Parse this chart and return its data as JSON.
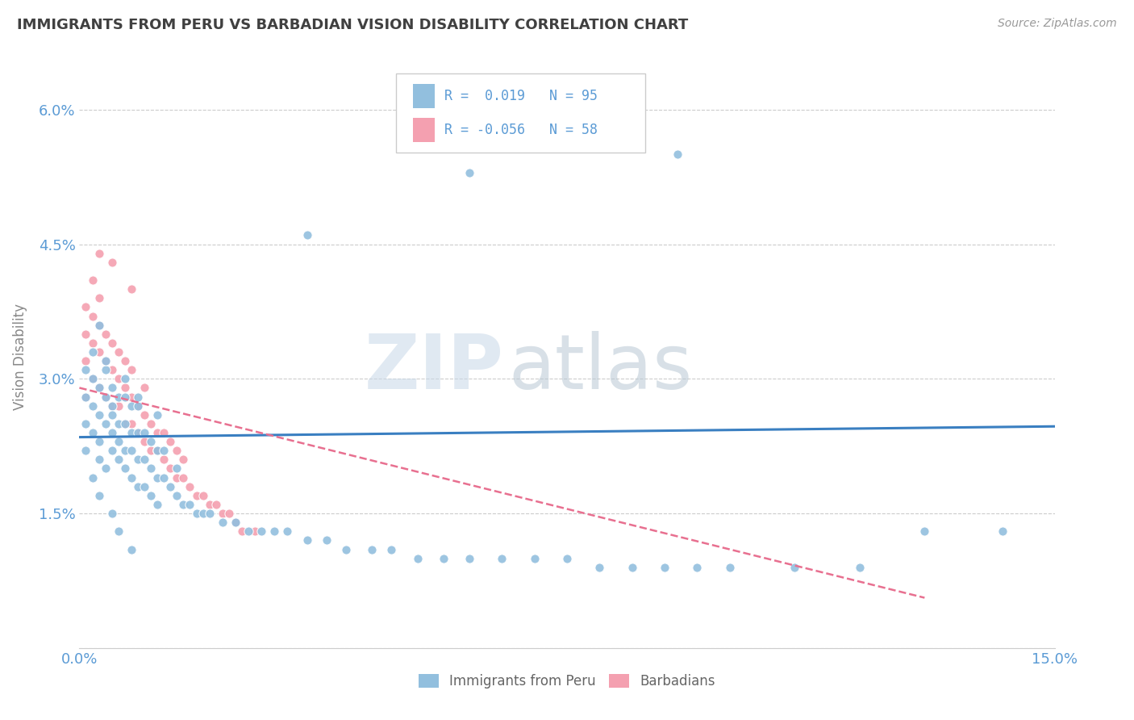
{
  "title": "IMMIGRANTS FROM PERU VS BARBADIAN VISION DISABILITY CORRELATION CHART",
  "source": "Source: ZipAtlas.com",
  "ylabel": "Vision Disability",
  "xlim": [
    0.0,
    0.15
  ],
  "ylim": [
    0.0,
    0.065
  ],
  "xticks": [
    0.0,
    0.03,
    0.06,
    0.09,
    0.12,
    0.15
  ],
  "yticks": [
    0.0,
    0.015,
    0.03,
    0.045,
    0.06
  ],
  "color_blue": "#92BFDE",
  "color_pink": "#F4A0B0",
  "color_trendline_blue": "#3A7FC1",
  "color_trendline_pink": "#E87090",
  "background_color": "#ffffff",
  "grid_color": "#cccccc",
  "axis_label_color": "#5B9BD5",
  "title_color": "#404040",
  "peru_x": [
    0.001,
    0.001,
    0.001,
    0.001,
    0.002,
    0.002,
    0.002,
    0.002,
    0.003,
    0.003,
    0.003,
    0.003,
    0.004,
    0.004,
    0.004,
    0.004,
    0.005,
    0.005,
    0.005,
    0.005,
    0.005,
    0.006,
    0.006,
    0.006,
    0.006,
    0.007,
    0.007,
    0.007,
    0.007,
    0.008,
    0.008,
    0.008,
    0.008,
    0.009,
    0.009,
    0.009,
    0.009,
    0.01,
    0.01,
    0.01,
    0.011,
    0.011,
    0.011,
    0.012,
    0.012,
    0.012,
    0.013,
    0.013,
    0.014,
    0.015,
    0.015,
    0.016,
    0.017,
    0.018,
    0.019,
    0.02,
    0.022,
    0.024,
    0.026,
    0.028,
    0.03,
    0.032,
    0.035,
    0.038,
    0.041,
    0.045,
    0.048,
    0.052,
    0.056,
    0.06,
    0.065,
    0.07,
    0.075,
    0.08,
    0.085,
    0.09,
    0.095,
    0.1,
    0.11,
    0.12,
    0.035,
    0.06,
    0.092,
    0.13,
    0.142,
    0.003,
    0.004,
    0.007,
    0.009,
    0.012,
    0.002,
    0.003,
    0.005,
    0.006,
    0.008
  ],
  "peru_y": [
    0.025,
    0.028,
    0.022,
    0.031,
    0.027,
    0.024,
    0.03,
    0.033,
    0.021,
    0.026,
    0.029,
    0.023,
    0.025,
    0.028,
    0.031,
    0.02,
    0.024,
    0.027,
    0.022,
    0.026,
    0.029,
    0.023,
    0.025,
    0.028,
    0.021,
    0.022,
    0.025,
    0.028,
    0.02,
    0.022,
    0.024,
    0.027,
    0.019,
    0.021,
    0.024,
    0.027,
    0.018,
    0.021,
    0.024,
    0.018,
    0.02,
    0.023,
    0.017,
    0.019,
    0.022,
    0.016,
    0.019,
    0.022,
    0.018,
    0.017,
    0.02,
    0.016,
    0.016,
    0.015,
    0.015,
    0.015,
    0.014,
    0.014,
    0.013,
    0.013,
    0.013,
    0.013,
    0.012,
    0.012,
    0.011,
    0.011,
    0.011,
    0.01,
    0.01,
    0.01,
    0.01,
    0.01,
    0.01,
    0.009,
    0.009,
    0.009,
    0.009,
    0.009,
    0.009,
    0.009,
    0.046,
    0.053,
    0.055,
    0.013,
    0.013,
    0.036,
    0.032,
    0.03,
    0.028,
    0.026,
    0.019,
    0.017,
    0.015,
    0.013,
    0.011
  ],
  "barb_x": [
    0.001,
    0.001,
    0.001,
    0.001,
    0.002,
    0.002,
    0.002,
    0.002,
    0.003,
    0.003,
    0.003,
    0.003,
    0.004,
    0.004,
    0.004,
    0.005,
    0.005,
    0.005,
    0.006,
    0.006,
    0.006,
    0.007,
    0.007,
    0.007,
    0.008,
    0.008,
    0.008,
    0.009,
    0.009,
    0.01,
    0.01,
    0.01,
    0.011,
    0.011,
    0.012,
    0.012,
    0.013,
    0.013,
    0.014,
    0.014,
    0.015,
    0.015,
    0.016,
    0.016,
    0.017,
    0.018,
    0.019,
    0.02,
    0.021,
    0.022,
    0.023,
    0.024,
    0.025,
    0.027,
    0.003,
    0.005,
    0.008,
    0.012
  ],
  "barb_y": [
    0.028,
    0.032,
    0.035,
    0.038,
    0.03,
    0.034,
    0.037,
    0.041,
    0.029,
    0.033,
    0.036,
    0.039,
    0.028,
    0.032,
    0.035,
    0.027,
    0.031,
    0.034,
    0.027,
    0.03,
    0.033,
    0.025,
    0.029,
    0.032,
    0.025,
    0.028,
    0.031,
    0.024,
    0.027,
    0.023,
    0.026,
    0.029,
    0.022,
    0.025,
    0.022,
    0.024,
    0.021,
    0.024,
    0.02,
    0.023,
    0.019,
    0.022,
    0.019,
    0.021,
    0.018,
    0.017,
    0.017,
    0.016,
    0.016,
    0.015,
    0.015,
    0.014,
    0.013,
    0.013,
    0.044,
    0.043,
    0.04,
    0.022
  ]
}
